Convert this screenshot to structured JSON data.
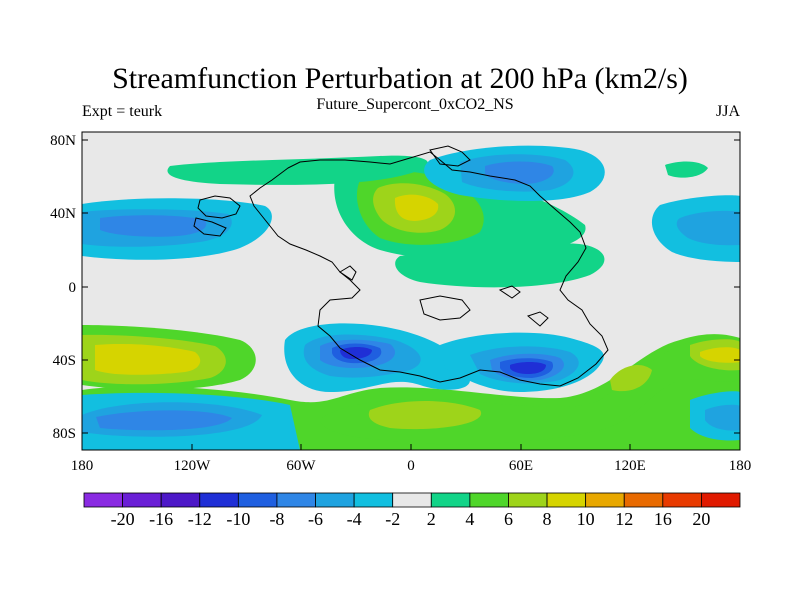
{
  "header": {
    "title": "Streamfunction Perturbation at 200 hPa (km2/s)",
    "subtitle": "Future_Supercont_0xCO2_NS",
    "left_label": "Expt = teurk",
    "right_label": "JJA"
  },
  "axes": {
    "y_ticks": [
      "80N",
      "40N",
      "0",
      "40S",
      "80S"
    ],
    "x_ticks": [
      "180",
      "120W",
      "60W",
      "0",
      "60E",
      "120E",
      "180"
    ]
  },
  "colorbar": {
    "labels": [
      "-20",
      "-16",
      "-12",
      "-10",
      "-8",
      "-6",
      "-4",
      "-2",
      "2",
      "4",
      "6",
      "8",
      "10",
      "12",
      "16",
      "20"
    ],
    "colors": [
      "#8a2be2",
      "#6a1fd6",
      "#4d18c8",
      "#1f2fd6",
      "#1f5fe0",
      "#2f86e6",
      "#1fa3e0",
      "#12bfe0",
      "#e8e8e8",
      "#12d488",
      "#4fd62a",
      "#9ed41a",
      "#d6d400",
      "#e8a800",
      "#e86a00",
      "#e83a00",
      "#e01a00"
    ]
  },
  "colors": {
    "background_field": "#e8e8e8",
    "coastline": "#000000"
  }
}
